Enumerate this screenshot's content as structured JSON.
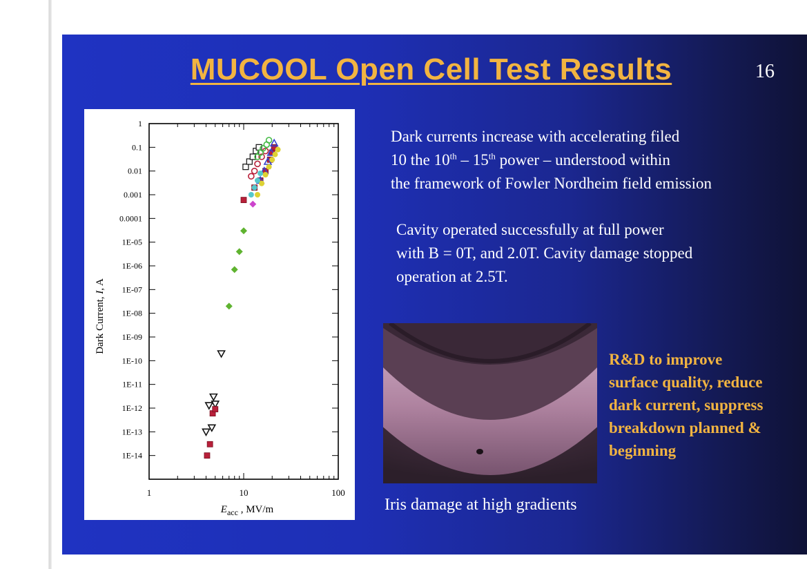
{
  "slide": {
    "title": "MUCOOL Open Cell Test Results",
    "page_number": "16"
  },
  "text": {
    "p1_line1": "Dark currents increase with accelerating filed",
    "p1_line2_a": "10 the 10",
    "p1_line2_sup1": "th",
    "p1_line2_b": " – 15",
    "p1_line2_sup2": "th",
    "p1_line2_c": " power – understood within",
    "p1_line3": "the framework of Fowler Nordheim field emission",
    "p2_line1": "Cavity operated successfully at full power",
    "p2_line2": "with B = 0T, and 2.0T.  Cavity damage stopped",
    "p2_line3": "operation at 2.5T.",
    "rd_lines": [
      "R&D to improve",
      "surface quality, reduce",
      "dark current, suppress",
      "breakdown planned &",
      "beginning"
    ],
    "caption": "Iris damage at high gradients"
  },
  "colors": {
    "title": "#f2b441",
    "rd_text": "#f2b441",
    "body_text": "#ffffff"
  },
  "chart_data": {
    "type": "scatter",
    "xscale": "log",
    "yscale": "log",
    "xlim": [
      1,
      100
    ],
    "ylim": [
      1e-15,
      1
    ],
    "xticks": [
      "1",
      "10",
      "100"
    ],
    "yticks": [
      "1",
      "0.1",
      "0.01",
      "0.001",
      "0.0001",
      "1E-05",
      "1E-06",
      "1E-07",
      "1E-08",
      "1E-09",
      "1E-10",
      "1E-11",
      "1E-12",
      "1E-13",
      "1E-14"
    ],
    "ylabel_main": "Dark Current,  ",
    "ylabel_italic": "I",
    "ylabel_tail": ", A",
    "xlabel_main": "E",
    "xlabel_sub": "acc",
    "xlabel_tail": " , MV/m",
    "series": [
      {
        "marker": "triangle-down",
        "color": "#111111",
        "x": [
          4.0,
          4.3,
          4.6,
          4.8,
          5.0,
          5.8
        ],
        "y": [
          1e-13,
          1.3e-12,
          1.5e-13,
          3e-12,
          1.5e-12,
          2e-10
        ]
      },
      {
        "marker": "square",
        "color": "#b8203a",
        "x": [
          4.1,
          4.4,
          4.7,
          5.0,
          10.0,
          13.0,
          15.0,
          17.0,
          19.0,
          20.0,
          21.0
        ],
        "y": [
          1e-14,
          3e-14,
          6e-13,
          9e-13,
          0.0006,
          0.002,
          0.004,
          0.01,
          0.03,
          0.06,
          0.1
        ]
      },
      {
        "marker": "diamond",
        "color": "#5fb330",
        "x": [
          7.0,
          8.0,
          9.0,
          10.0
        ],
        "y": [
          2e-08,
          7e-07,
          4e-06,
          3e-05
        ]
      },
      {
        "marker": "square-open",
        "color": "#111111",
        "x": [
          10.5,
          11.5,
          12.5,
          13.5,
          14.5
        ],
        "y": [
          0.015,
          0.025,
          0.04,
          0.07,
          0.1
        ]
      },
      {
        "marker": "circle-open",
        "color": "#b8203a",
        "x": [
          12.0,
          13.0,
          14.0,
          15.5,
          17.0
        ],
        "y": [
          0.006,
          0.01,
          0.02,
          0.04,
          0.07
        ]
      },
      {
        "marker": "circle-open",
        "color": "#44bb44",
        "x": [
          14.0,
          15.0,
          16.0,
          17.5,
          18.5
        ],
        "y": [
          0.04,
          0.06,
          0.09,
          0.13,
          0.2
        ]
      },
      {
        "marker": "triangle-open",
        "color": "#3340cc",
        "x": [
          15.0,
          16.5,
          18.0,
          19.5,
          21.0
        ],
        "y": [
          0.004,
          0.01,
          0.025,
          0.06,
          0.15
        ]
      },
      {
        "marker": "circle",
        "color": "#ddd233",
        "x": [
          14.0,
          15.5,
          17.0,
          18.5,
          20.0,
          21.5,
          23.0
        ],
        "y": [
          0.001,
          0.003,
          0.007,
          0.015,
          0.03,
          0.05,
          0.08
        ]
      },
      {
        "marker": "circle",
        "color": "#55c8cc",
        "x": [
          12.0,
          13.0,
          14.0,
          15.0
        ],
        "y": [
          0.001,
          0.002,
          0.004,
          0.008
        ]
      },
      {
        "marker": "diamond",
        "color": "#cc44cc",
        "x": [
          12.5
        ],
        "y": [
          0.0004
        ]
      }
    ]
  }
}
